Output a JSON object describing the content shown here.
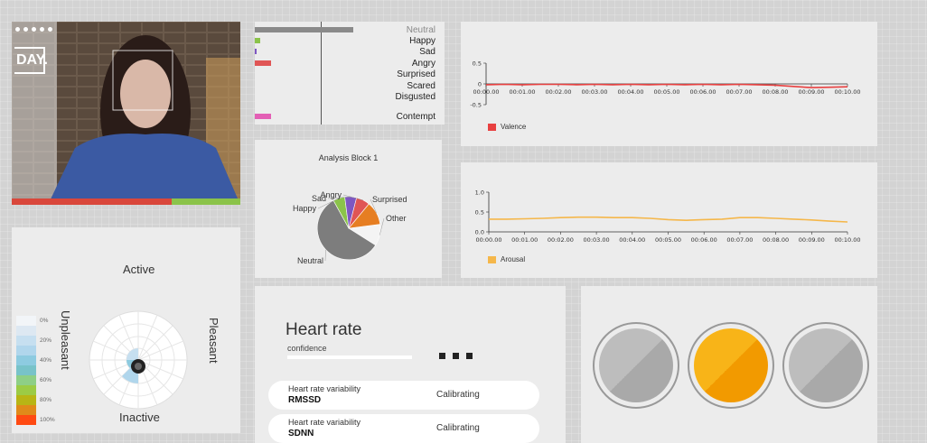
{
  "video": {
    "logo": "DAY."
  },
  "emotions": [
    {
      "label": "Neutral",
      "value": 0.52,
      "color": "#8a8a8a",
      "muted": true
    },
    {
      "label": "Happy",
      "value": 0.03,
      "color": "#8bc34a"
    },
    {
      "label": "Sad",
      "value": 0.005,
      "color": "#7e57c2"
    },
    {
      "label": "Angry",
      "value": 0.085,
      "color": "#e05555"
    },
    {
      "label": "Surprised",
      "value": 0,
      "color": "#ff9800"
    },
    {
      "label": "Scared",
      "value": 0,
      "color": "#999999"
    },
    {
      "label": "Disgusted",
      "value": 0,
      "color": "#999999"
    },
    {
      "label": "Contempt",
      "value": 0.085,
      "color": "#e35fb5"
    }
  ],
  "valence_chart": {
    "yticks": [
      "0.5",
      "0",
      "-0.5"
    ],
    "xticks": [
      "00:00.00",
      "00:01.00",
      "00:02.00",
      "00:03.00",
      "00:04.00",
      "00:05.00",
      "00:06.00",
      "00:07.00",
      "00:08.00",
      "00:09.00",
      "00:10.00"
    ],
    "legend": "Valence",
    "color": "#e84040"
  },
  "arousal_chart": {
    "yticks": [
      "1.0",
      "0.5",
      "0.0"
    ],
    "xticks": [
      "00:00.00",
      "00:01.00",
      "00:02.00",
      "00:03.00",
      "00:04.00",
      "00:05.00",
      "00:06.00",
      "00:07.00",
      "00:08.00",
      "00:09.00",
      "00:10.00"
    ],
    "legend": "Arousal",
    "color": "#f5b74a"
  },
  "chart_data": [
    {
      "type": "line",
      "x": [
        0,
        0.5,
        1,
        1.5,
        2,
        2.5,
        3,
        3.5,
        4,
        4.5,
        5,
        5.5,
        6,
        6.5,
        7,
        7.5,
        8,
        8.5,
        9,
        9.5,
        10
      ],
      "series": [
        {
          "name": "Valence",
          "values": [
            -0.02,
            -0.01,
            -0.02,
            -0.01,
            -0.01,
            -0.02,
            -0.01,
            -0.02,
            -0.01,
            -0.02,
            -0.01,
            -0.02,
            -0.01,
            -0.02,
            -0.01,
            -0.02,
            -0.03,
            -0.06,
            -0.09,
            -0.08,
            -0.07
          ]
        }
      ],
      "ylim": [
        -0.5,
        0.5
      ]
    },
    {
      "type": "line",
      "x": [
        0,
        0.5,
        1,
        1.5,
        2,
        2.5,
        3,
        3.5,
        4,
        4.5,
        5,
        5.5,
        6,
        6.5,
        7,
        7.5,
        8,
        8.5,
        9,
        9.5,
        10
      ],
      "series": [
        {
          "name": "Arousal",
          "values": [
            0.32,
            0.32,
            0.33,
            0.34,
            0.36,
            0.37,
            0.37,
            0.36,
            0.36,
            0.34,
            0.31,
            0.29,
            0.31,
            0.32,
            0.36,
            0.36,
            0.34,
            0.32,
            0.3,
            0.27,
            0.25
          ]
        }
      ],
      "ylim": [
        0,
        1
      ]
    },
    {
      "type": "pie",
      "title": "Analysis Block 1",
      "categories": [
        "Neutral",
        "Happy",
        "Sad",
        "Angry",
        "Surprised",
        "Other"
      ],
      "values": [
        58,
        6,
        6,
        7,
        12,
        11
      ],
      "colors": [
        "#7d7d7d",
        "#8bc34a",
        "#7e57c2",
        "#e05555",
        "#e67e22",
        "#f4f4f4"
      ]
    }
  ],
  "circumplex": {
    "top": "Active",
    "bottom": "Inactive",
    "left": "Unpleasant",
    "right": "Pleasant",
    "scale": [
      {
        "label": "0%",
        "color": "#f2f5f8"
      },
      {
        "label": "",
        "color": "#dde8f2"
      },
      {
        "label": "20%",
        "color": "#c6dff0"
      },
      {
        "label": "",
        "color": "#b0d6ec"
      },
      {
        "label": "40%",
        "color": "#8dcbe0"
      },
      {
        "label": "",
        "color": "#78c3c9"
      },
      {
        "label": "60%",
        "color": "#8ecf86"
      },
      {
        "label": "",
        "color": "#9ccb45"
      },
      {
        "label": "80%",
        "color": "#b8b515"
      },
      {
        "label": "",
        "color": "#e08a1a"
      },
      {
        "label": "100%",
        "color": "#ff4a12"
      }
    ]
  },
  "heart": {
    "title": "Heart rate",
    "confidence": "confidence",
    "rows": [
      {
        "line1": "Heart rate variability",
        "line2": "RMSSD",
        "status": "Calibrating"
      },
      {
        "line1": "Heart rate variability",
        "line2": "SDNN",
        "status": "Calibrating"
      }
    ]
  },
  "gauges": [
    {
      "state": "inactive",
      "color": "#bdbdbd"
    },
    {
      "state": "active",
      "color": "#f8b418"
    },
    {
      "state": "inactive",
      "color": "#bdbdbd"
    }
  ]
}
